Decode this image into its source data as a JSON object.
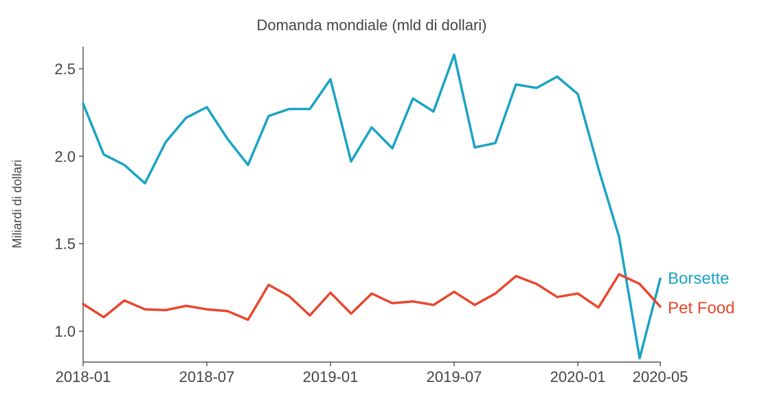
{
  "chart_data": {
    "type": "line",
    "title": "Domanda mondiale (mld di dollari)",
    "xlabel": "",
    "ylabel": "Miliardi di dollari",
    "x": [
      "2018-01",
      "2018-02",
      "2018-03",
      "2018-04",
      "2018-05",
      "2018-06",
      "2018-07",
      "2018-08",
      "2018-09",
      "2018-10",
      "2018-11",
      "2018-12",
      "2019-01",
      "2019-02",
      "2019-03",
      "2019-04",
      "2019-05",
      "2019-06",
      "2019-07",
      "2019-08",
      "2019-09",
      "2019-10",
      "2019-11",
      "2019-12",
      "2020-01",
      "2020-02",
      "2020-03",
      "2020-04",
      "2020-05"
    ],
    "xticks": [
      "2018-01",
      "2018-07",
      "2019-01",
      "2019-07",
      "2020-01",
      "2020-05"
    ],
    "yticks": [
      "1.0",
      "1.5",
      "2.0",
      "2.5"
    ],
    "ylim": [
      0.85,
      2.65
    ],
    "grid": false,
    "legend": "inline labels at line ends",
    "series": [
      {
        "name": "Borsette",
        "color": "#1aa3c4",
        "values": [
          2.3,
          2.01,
          1.95,
          1.845,
          2.08,
          2.22,
          2.28,
          2.1,
          1.95,
          2.23,
          2.27,
          2.27,
          2.44,
          1.97,
          2.165,
          2.045,
          2.33,
          2.255,
          2.58,
          2.05,
          2.075,
          2.41,
          2.39,
          2.455,
          2.355,
          1.93,
          1.54,
          0.845,
          1.3
        ]
      },
      {
        "name": "Pet Food",
        "color": "#e8472d",
        "values": [
          1.155,
          1.08,
          1.175,
          1.125,
          1.12,
          1.145,
          1.125,
          1.115,
          1.065,
          1.265,
          1.2,
          1.09,
          1.22,
          1.1,
          1.215,
          1.16,
          1.17,
          1.15,
          1.225,
          1.15,
          1.215,
          1.315,
          1.27,
          1.195,
          1.215,
          1.135,
          1.325,
          1.27,
          1.14
        ]
      }
    ]
  }
}
